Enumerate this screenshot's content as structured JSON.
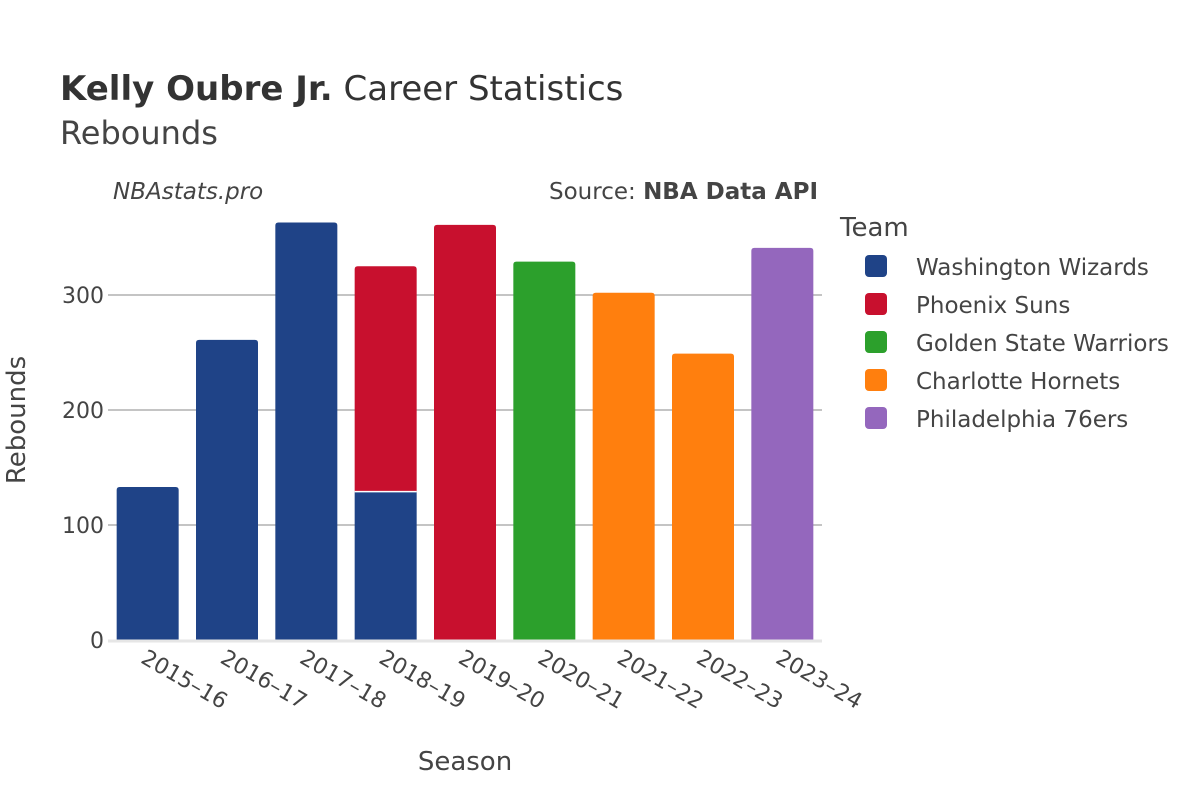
{
  "header": {
    "title_bold": "Kelly Oubre Jr.",
    "title_rest": "Career Statistics",
    "subtitle": "Rebounds",
    "watermark": "NBAstats.pro",
    "source_prefix": "Source:",
    "source_bold": "NBA Data API"
  },
  "legend": {
    "title": "Team",
    "placement": "right"
  },
  "chart_data": {
    "type": "bar",
    "stacked": true,
    "grid": true,
    "xlabel": "Season",
    "ylabel": "Rebounds",
    "ylim": [
      0,
      370
    ],
    "yticks": [
      0,
      100,
      200,
      300
    ],
    "categories": [
      "2015–16",
      "2016–17",
      "2017–18",
      "2018–19",
      "2019–20",
      "2020–21",
      "2021–22",
      "2022–23",
      "2023–24"
    ],
    "series": [
      {
        "name": "Washington Wizards",
        "color": "#1f4387",
        "values": [
          133,
          261,
          363,
          129,
          0,
          0,
          0,
          0,
          0
        ]
      },
      {
        "name": "Phoenix Suns",
        "color": "#c8102e",
        "values": [
          0,
          0,
          0,
          196,
          361,
          0,
          0,
          0,
          0
        ]
      },
      {
        "name": "Golden State Warriors",
        "color": "#2ca02c",
        "values": [
          0,
          0,
          0,
          0,
          0,
          329,
          0,
          0,
          0
        ]
      },
      {
        "name": "Charlotte Hornets",
        "color": "#ff7f0e",
        "values": [
          0,
          0,
          0,
          0,
          0,
          0,
          302,
          249,
          0
        ]
      },
      {
        "name": "Philadelphia 76ers",
        "color": "#9467bd",
        "values": [
          0,
          0,
          0,
          0,
          0,
          0,
          0,
          0,
          341
        ]
      }
    ]
  }
}
